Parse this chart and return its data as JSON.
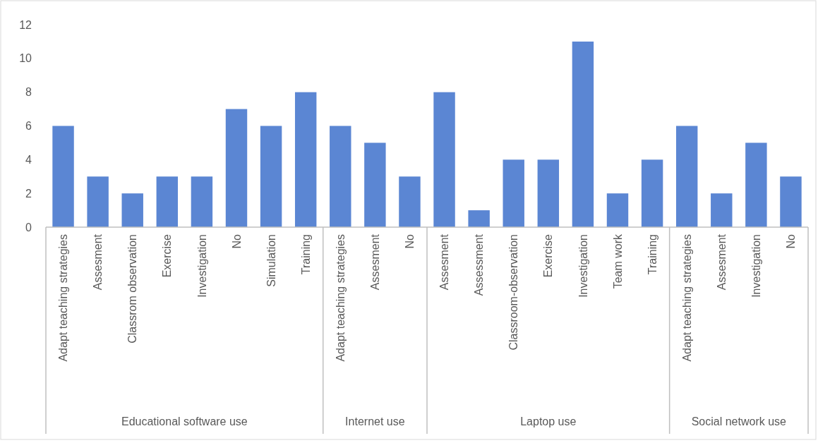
{
  "chart_data": {
    "type": "bar",
    "categories": [
      "Adapt teaching strategies",
      "Assesment",
      "Classrom observation",
      "Exercise",
      "Investigation",
      "No",
      "Simulation",
      "Training",
      "Adapt teaching strategies",
      "Assesment",
      "No",
      "Assesment",
      "Assessment",
      "Classroom-observation",
      "Exercise",
      "Investigation",
      "Team work",
      "Training",
      "Adapt teaching strategies",
      "Assesment",
      "Investigation",
      "No"
    ],
    "values": [
      6,
      3,
      2,
      3,
      3,
      7,
      6,
      8,
      6,
      5,
      3,
      8,
      1,
      4,
      4,
      11,
      2,
      4,
      6,
      2,
      5,
      3
    ],
    "color": "#5b86d3",
    "ylim": [
      0,
      12
    ],
    "yticks": [
      0,
      2,
      4,
      6,
      8,
      10,
      12
    ],
    "grid": false,
    "annotations": [
      "Educational software use",
      "Internet use",
      "Laptop use",
      "Social network use"
    ]
  }
}
